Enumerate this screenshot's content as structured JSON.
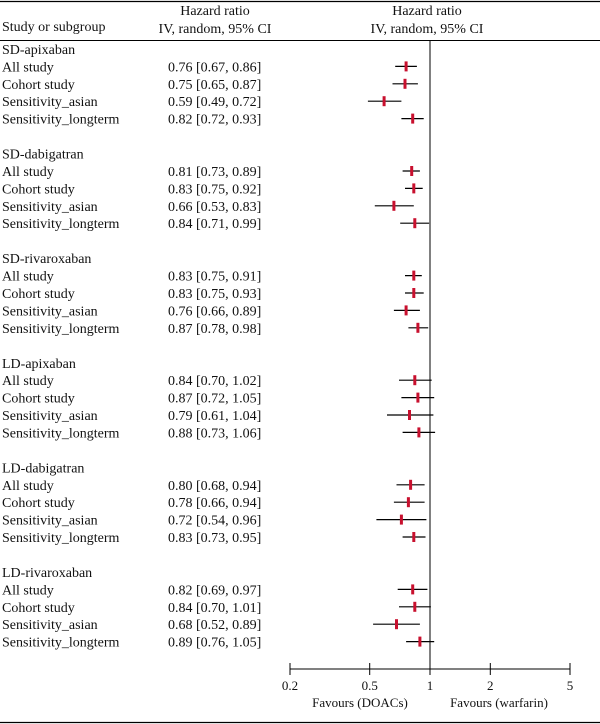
{
  "header": {
    "col1": "Study or subgroup",
    "col2_line1": "Hazard ratio",
    "col2_line2": "IV, random, 95% CI",
    "col3_line1": "Hazard ratio",
    "col3_line2": "IV, random, 95% CI"
  },
  "colors": {
    "point": "#c8102e",
    "line": "#000000"
  },
  "chart_data": {
    "type": "forest",
    "scale": "log",
    "reference_line": 1,
    "xlim": [
      0.2,
      5
    ],
    "ticks": [
      {
        "value": 0.2,
        "label": "0.2"
      },
      {
        "value": 0.5,
        "label": "0.5"
      },
      {
        "value": 1,
        "label": "1"
      },
      {
        "value": 2,
        "label": "2"
      },
      {
        "value": 5,
        "label": "5"
      }
    ],
    "favours_left": "Favours (DOACs)",
    "favours_right": "Favours (warfarin)",
    "groups": [
      {
        "name": "SD-apixaban",
        "rows": [
          {
            "label": "All study",
            "hr": 0.76,
            "lo": 0.67,
            "hi": 0.86,
            "ci_text": "0.76 [0.67, 0.86]"
          },
          {
            "label": "Cohort study",
            "hr": 0.75,
            "lo": 0.65,
            "hi": 0.87,
            "ci_text": "0.75 [0.65, 0.87]"
          },
          {
            "label": "Sensitivity_asian",
            "hr": 0.59,
            "lo": 0.49,
            "hi": 0.72,
            "ci_text": "0.59 [0.49, 0.72]"
          },
          {
            "label": "Sensitivity_longterm",
            "hr": 0.82,
            "lo": 0.72,
            "hi": 0.93,
            "ci_text": "0.82 [0.72, 0.93]"
          }
        ]
      },
      {
        "name": "SD-dabigatran",
        "rows": [
          {
            "label": "All study",
            "hr": 0.81,
            "lo": 0.73,
            "hi": 0.89,
            "ci_text": "0.81 [0.73, 0.89]"
          },
          {
            "label": "Cohort study",
            "hr": 0.83,
            "lo": 0.75,
            "hi": 0.92,
            "ci_text": "0.83 [0.75, 0.92]"
          },
          {
            "label": "Sensitivity_asian",
            "hr": 0.66,
            "lo": 0.53,
            "hi": 0.83,
            "ci_text": "0.66 [0.53, 0.83]"
          },
          {
            "label": "Sensitivity_longterm",
            "hr": 0.84,
            "lo": 0.71,
            "hi": 0.99,
            "ci_text": "0.84 [0.71, 0.99]"
          }
        ]
      },
      {
        "name": "SD-rivaroxaban",
        "rows": [
          {
            "label": "All study",
            "hr": 0.83,
            "lo": 0.75,
            "hi": 0.91,
            "ci_text": "0.83 [0.75, 0.91]"
          },
          {
            "label": "Cohort study",
            "hr": 0.83,
            "lo": 0.75,
            "hi": 0.93,
            "ci_text": "0.83 [0.75, 0.93]"
          },
          {
            "label": "Sensitivity_asian",
            "hr": 0.76,
            "lo": 0.66,
            "hi": 0.89,
            "ci_text": "0.76 [0.66, 0.89]"
          },
          {
            "label": "Sensitivity_longterm",
            "hr": 0.87,
            "lo": 0.78,
            "hi": 0.98,
            "ci_text": "0.87 [0.78, 0.98]"
          }
        ]
      },
      {
        "name": "LD-apixaban",
        "rows": [
          {
            "label": "All study",
            "hr": 0.84,
            "lo": 0.7,
            "hi": 1.02,
            "ci_text": "0.84 [0.70, 1.02]"
          },
          {
            "label": "Cohort study",
            "hr": 0.87,
            "lo": 0.72,
            "hi": 1.05,
            "ci_text": "0.87 [0.72, 1.05]"
          },
          {
            "label": "Sensitivity_asian",
            "hr": 0.79,
            "lo": 0.61,
            "hi": 1.04,
            "ci_text": "0.79 [0.61, 1.04]"
          },
          {
            "label": "Sensitivity_longterm",
            "hr": 0.88,
            "lo": 0.73,
            "hi": 1.06,
            "ci_text": "0.88 [0.73, 1.06]"
          }
        ]
      },
      {
        "name": "LD-dabigatran",
        "rows": [
          {
            "label": "All study",
            "hr": 0.8,
            "lo": 0.68,
            "hi": 0.94,
            "ci_text": "0.80 [0.68, 0.94]"
          },
          {
            "label": "Cohort study",
            "hr": 0.78,
            "lo": 0.66,
            "hi": 0.94,
            "ci_text": "0.78 [0.66, 0.94]"
          },
          {
            "label": "Sensitivity_asian",
            "hr": 0.72,
            "lo": 0.54,
            "hi": 0.96,
            "ci_text": "0.72 [0.54, 0.96]"
          },
          {
            "label": "Sensitivity_longterm",
            "hr": 0.83,
            "lo": 0.73,
            "hi": 0.95,
            "ci_text": "0.83 [0.73, 0.95]"
          }
        ]
      },
      {
        "name": "LD-rivaroxaban",
        "rows": [
          {
            "label": "All study",
            "hr": 0.82,
            "lo": 0.69,
            "hi": 0.97,
            "ci_text": "0.82 [0.69, 0.97]"
          },
          {
            "label": "Cohort study",
            "hr": 0.84,
            "lo": 0.7,
            "hi": 1.01,
            "ci_text": "0.84 [0.70, 1.01]"
          },
          {
            "label": "Sensitivity_asian",
            "hr": 0.68,
            "lo": 0.52,
            "hi": 0.89,
            "ci_text": "0.68 [0.52, 0.89]"
          },
          {
            "label": "Sensitivity_longterm",
            "hr": 0.89,
            "lo": 0.76,
            "hi": 1.05,
            "ci_text": "0.89 [0.76, 1.05]"
          }
        ]
      }
    ]
  }
}
